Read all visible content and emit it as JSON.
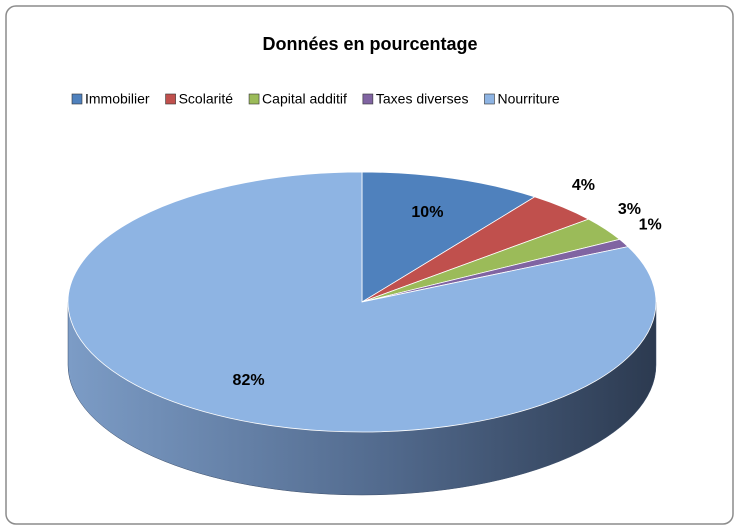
{
  "chart_data": {
    "type": "pie",
    "title": "Données en pourcentage",
    "categories": [
      "Immobilier",
      "Scolarité",
      "Capital additif",
      "Taxes diverses",
      "Nourriture"
    ],
    "values": [
      10,
      4,
      3,
      1,
      82
    ],
    "value_labels": [
      "10%",
      "4%",
      "3%",
      "1%",
      "82%"
    ],
    "colors": [
      "#4f81bd",
      "#c0504d",
      "#9bbb59",
      "#8064a2",
      "#8eb4e3"
    ],
    "legend": "top"
  }
}
